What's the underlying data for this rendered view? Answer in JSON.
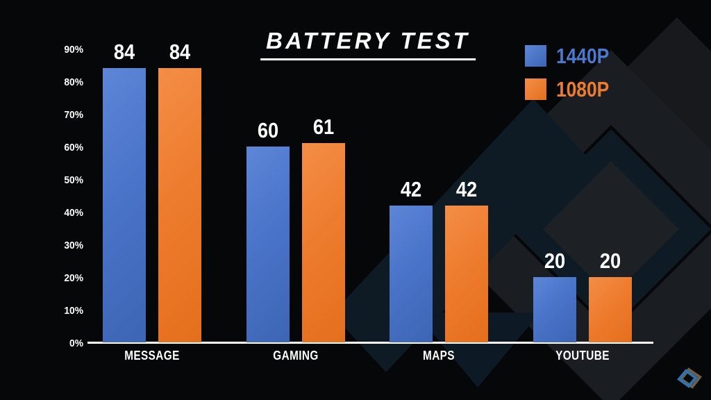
{
  "title": "BATTERY TEST",
  "colors": {
    "background": "#060708",
    "bar_blue": "#4a74c9",
    "bar_orange": "#ee7c2e",
    "text": "#ffffff",
    "watermark_gray": "#1a1d21",
    "watermark_teal": "#0e1b25"
  },
  "icons": {
    "watermark": "brand-diamond-watermark-icon",
    "corner_logo": "brand-diamond-logo-icon"
  },
  "chart_data": {
    "type": "bar",
    "title": "BATTERY TEST",
    "categories": [
      "MESSAGE",
      "GAMING",
      "MAPS",
      "YOUTUBE"
    ],
    "series": [
      {
        "name": "1440P",
        "label_color": "#4a79cf",
        "values": [
          84,
          60,
          42,
          20
        ]
      },
      {
        "name": "1080P",
        "label_color": "#ee7c2e",
        "values": [
          84,
          61,
          42,
          20
        ]
      }
    ],
    "xlabel": "",
    "ylabel": "",
    "ylim": [
      0,
      90
    ],
    "y_ticks": [
      "0%",
      "10%",
      "20%",
      "30%",
      "40%",
      "50%",
      "60%",
      "70%",
      "80%",
      "90%"
    ],
    "grid": false,
    "legend_position": "top-right",
    "value_labels": "above-bars"
  }
}
